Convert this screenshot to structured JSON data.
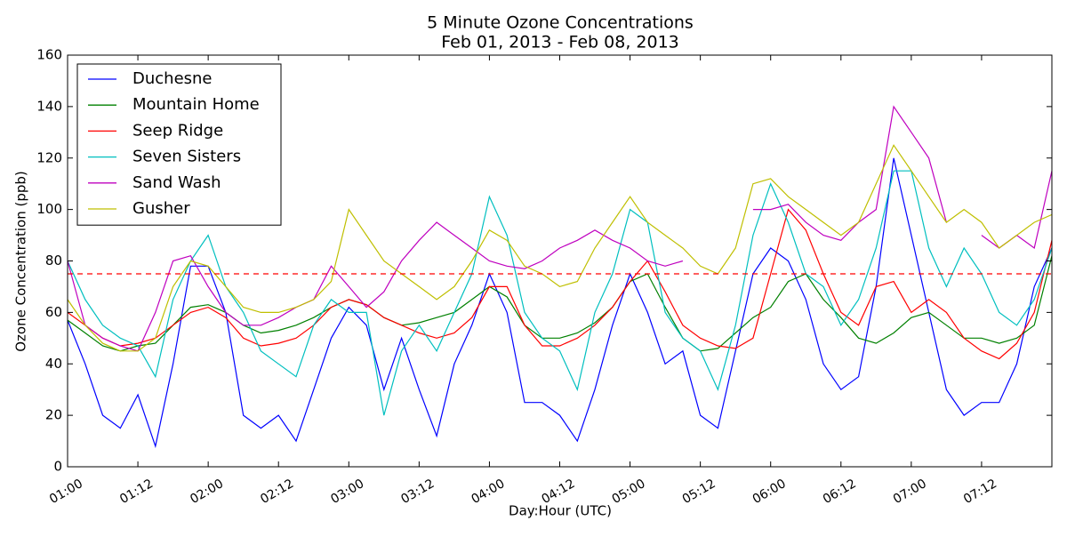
{
  "chart_data": {
    "type": "line",
    "title": "5 Minute Ozone Concentrations",
    "subtitle": "Feb 01, 2013 - Feb 08, 2013",
    "x_label": "Day:Hour (UTC)",
    "y_label": "Ozone Concentration (ppb)",
    "xlim": [
      0,
      168
    ],
    "ylim": [
      0,
      160
    ],
    "xticks": [
      {
        "value": 0,
        "label": "01:00"
      },
      {
        "value": 12,
        "label": "01:12"
      },
      {
        "value": 24,
        "label": "02:00"
      },
      {
        "value": 36,
        "label": "02:12"
      },
      {
        "value": 48,
        "label": "03:00"
      },
      {
        "value": 60,
        "label": "03:12"
      },
      {
        "value": 72,
        "label": "04:00"
      },
      {
        "value": 84,
        "label": "04:12"
      },
      {
        "value": 96,
        "label": "05:00"
      },
      {
        "value": 108,
        "label": "05:12"
      },
      {
        "value": 120,
        "label": "06:00"
      },
      {
        "value": 132,
        "label": "06:12"
      },
      {
        "value": 144,
        "label": "07:00"
      },
      {
        "value": 156,
        "label": "07:12"
      }
    ],
    "yticks": [
      0,
      20,
      40,
      60,
      80,
      100,
      120,
      140,
      160
    ],
    "legend": "upper left",
    "reference_line": {
      "value": 75,
      "color": "#ff0000"
    },
    "x": [
      0,
      3,
      6,
      9,
      12,
      15,
      18,
      21,
      24,
      27,
      30,
      33,
      36,
      39,
      42,
      45,
      48,
      51,
      54,
      57,
      60,
      63,
      66,
      69,
      72,
      75,
      78,
      81,
      84,
      87,
      90,
      93,
      96,
      99,
      102,
      105,
      108,
      111,
      114,
      117,
      120,
      123,
      126,
      129,
      132,
      135,
      138,
      141,
      144,
      147,
      150,
      153,
      156,
      159,
      162,
      165,
      168
    ],
    "series": [
      {
        "name": "Duchesne",
        "color": "#0000ff",
        "values": [
          57,
          40,
          20,
          15,
          28,
          8,
          40,
          78,
          78,
          60,
          20,
          15,
          20,
          10,
          30,
          50,
          62,
          55,
          30,
          50,
          30,
          12,
          40,
          55,
          75,
          60,
          25,
          25,
          20,
          10,
          30,
          55,
          75,
          60,
          40,
          45,
          20,
          15,
          45,
          75,
          85,
          80,
          65,
          40,
          30,
          35,
          70,
          120,
          90,
          60,
          30,
          20,
          25,
          25,
          40,
          70,
          85
        ]
      },
      {
        "name": "Mountain Home",
        "color": "#008000",
        "values": [
          57,
          52,
          47,
          45,
          47,
          48,
          55,
          62,
          63,
          60,
          55,
          52,
          53,
          55,
          58,
          62,
          65,
          63,
          58,
          55,
          56,
          58,
          60,
          65,
          70,
          66,
          55,
          50,
          50,
          52,
          56,
          62,
          72,
          75,
          62,
          50,
          45,
          46,
          52,
          58,
          62,
          72,
          75,
          65,
          58,
          50,
          48,
          52,
          58,
          60,
          55,
          50,
          50,
          48,
          50,
          55,
          82
        ]
      },
      {
        "name": "Seep Ridge",
        "color": "#ff0000",
        "values": [
          60,
          55,
          50,
          47,
          48,
          50,
          55,
          60,
          62,
          58,
          50,
          47,
          48,
          50,
          55,
          62,
          65,
          63,
          58,
          55,
          52,
          50,
          52,
          58,
          70,
          70,
          55,
          47,
          47,
          50,
          55,
          62,
          72,
          80,
          68,
          55,
          50,
          47,
          46,
          50,
          75,
          100,
          92,
          75,
          60,
          55,
          70,
          72,
          60,
          65,
          60,
          50,
          45,
          42,
          48,
          60,
          88
        ]
      },
      {
        "name": "Seven Sisters",
        "color": "#00bfbf",
        "values": [
          80,
          65,
          55,
          50,
          47,
          35,
          65,
          80,
          90,
          70,
          60,
          45,
          40,
          35,
          55,
          65,
          60,
          60,
          20,
          45,
          55,
          45,
          60,
          75,
          105,
          90,
          60,
          50,
          45,
          30,
          60,
          75,
          100,
          95,
          60,
          50,
          45,
          30,
          55,
          90,
          110,
          95,
          75,
          70,
          55,
          65,
          85,
          115,
          115,
          85,
          70,
          85,
          75,
          60,
          55,
          65,
          85
        ]
      },
      {
        "name": "Sand Wash",
        "color": "#bf00bf",
        "values": [
          80,
          55,
          50,
          47,
          45,
          60,
          80,
          82,
          70,
          60,
          55,
          55,
          58,
          62,
          65,
          78,
          70,
          62,
          68,
          80,
          88,
          95,
          90,
          85,
          80,
          78,
          77,
          80,
          85,
          88,
          92,
          88,
          85,
          80,
          78,
          80,
          null,
          null,
          null,
          100,
          100,
          102,
          95,
          90,
          88,
          95,
          100,
          140,
          130,
          120,
          95,
          null,
          90,
          85,
          90,
          85,
          115
        ]
      },
      {
        "name": "Gusher",
        "color": "#bfbf00",
        "values": [
          65,
          55,
          48,
          45,
          45,
          50,
          70,
          80,
          78,
          70,
          62,
          60,
          60,
          62,
          65,
          72,
          100,
          90,
          80,
          75,
          70,
          65,
          70,
          80,
          92,
          88,
          78,
          75,
          70,
          72,
          85,
          95,
          105,
          95,
          90,
          85,
          78,
          75,
          85,
          110,
          112,
          105,
          100,
          95,
          90,
          95,
          110,
          125,
          115,
          105,
          95,
          100,
          95,
          85,
          90,
          95,
          98
        ]
      }
    ]
  }
}
